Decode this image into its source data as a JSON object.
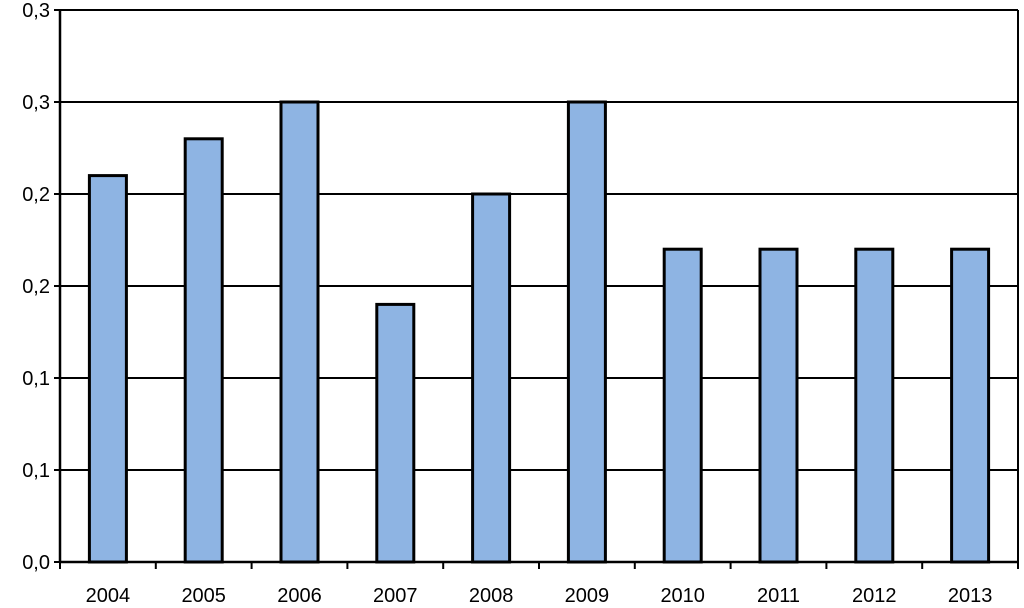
{
  "chart_data": {
    "type": "bar",
    "categories": [
      "2004",
      "2005",
      "2006",
      "2007",
      "2008",
      "2009",
      "2010",
      "2011",
      "2012",
      "2013"
    ],
    "values": [
      0.21,
      0.23,
      0.25,
      0.14,
      0.2,
      0.25,
      0.17,
      0.17,
      0.17,
      0.17
    ],
    "ylim": [
      0,
      0.3
    ],
    "y_tick_values": [
      0,
      0.05,
      0.1,
      0.15,
      0.2,
      0.25,
      0.3
    ],
    "y_tick_labels": [
      "0,0",
      "0,1",
      "0,1",
      "0,2",
      "0,2",
      "0,3",
      "0,3"
    ],
    "grid": true,
    "legend": "none",
    "colors": {
      "bar_fill": "#8eb4e3",
      "bar_stroke": "#000000",
      "gridline": "#000000"
    }
  }
}
